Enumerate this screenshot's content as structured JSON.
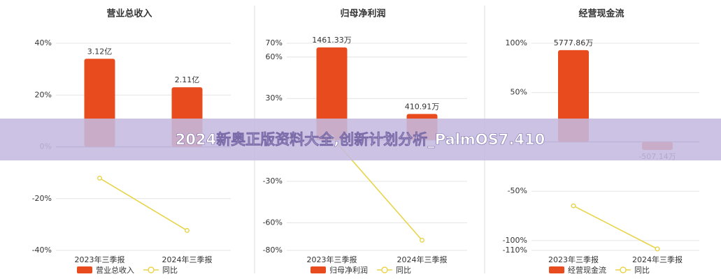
{
  "banner": "2024新奥正版资料大全,创新计划分析_PalmOS7.410",
  "chart_data": [
    {
      "type": "bar",
      "title": "营业总收入",
      "categories": [
        "2023年三季报",
        "2024年三季报"
      ],
      "series": [
        {
          "name": "营业总收入",
          "type": "bar",
          "axis": "y2",
          "color": "#e84c1e",
          "values": [
            3.12,
            2.11
          ],
          "value_labels": [
            "3.12亿",
            "2.11亿"
          ]
        },
        {
          "name": "同比",
          "type": "line",
          "axis": "y",
          "color": "#e8d44a",
          "values": [
            -12.1,
            -32.3
          ]
        }
      ],
      "ylim": [
        -40,
        40
      ],
      "yticks": [
        {
          "value": -40,
          "label": "-40%"
        },
        {
          "value": -20,
          "label": "-20%"
        },
        {
          "value": 0,
          "label": "0%"
        },
        {
          "value": 20,
          "label": "20%"
        },
        {
          "value": 40,
          "label": "40%"
        }
      ],
      "y2lim": [
        -3.67,
        3.67
      ],
      "grid": true
    },
    {
      "type": "bar",
      "title": "归母净利润",
      "categories": [
        "2023年三季报",
        "2024年三季报"
      ],
      "series": [
        {
          "name": "归母净利润",
          "type": "bar",
          "axis": "y2",
          "color": "#e84c1e",
          "values": [
            1461.33,
            410.91
          ],
          "value_labels": [
            "1461.33万",
            "410.91万"
          ]
        },
        {
          "name": "同比",
          "type": "line",
          "axis": "y",
          "color": "#e8d44a",
          "values": [
            2,
            -72.6
          ]
        }
      ],
      "ylim": [
        -80,
        70
      ],
      "yticks": [
        {
          "value": -80,
          "label": "-80%"
        },
        {
          "value": -60,
          "label": "-60%"
        },
        {
          "value": -30,
          "label": "-30%"
        },
        {
          "value": 30,
          "label": "30%"
        },
        {
          "value": 60,
          "label": "60%"
        },
        {
          "value": 70,
          "label": "70%"
        }
      ],
      "y2lim": [
        -1744,
        1527
      ],
      "grid": true
    },
    {
      "type": "bar",
      "title": "经营现金流",
      "categories": [
        "2023年三季报",
        "2024年三季报"
      ],
      "series": [
        {
          "name": "经营现金流",
          "type": "bar",
          "axis": "y2",
          "color": "#e84c1e",
          "values": [
            5777.86,
            -507.14
          ],
          "value_labels": [
            "5777.86万",
            "-507.14万"
          ]
        },
        {
          "name": "同比",
          "type": "line",
          "axis": "y",
          "color": "#e8d44a",
          "values": [
            -64.8,
            -108.5
          ]
        }
      ],
      "ylim": [
        -110,
        100
      ],
      "yticks": [
        {
          "value": -110,
          "label": "-110%"
        },
        {
          "value": -100,
          "label": "-100%"
        },
        {
          "value": -50,
          "label": "-50%"
        },
        {
          "value": 50,
          "label": "50%"
        },
        {
          "value": 100,
          "label": "100%"
        }
      ],
      "y2lim": [
        -6831,
        6210
      ],
      "grid": true
    }
  ]
}
